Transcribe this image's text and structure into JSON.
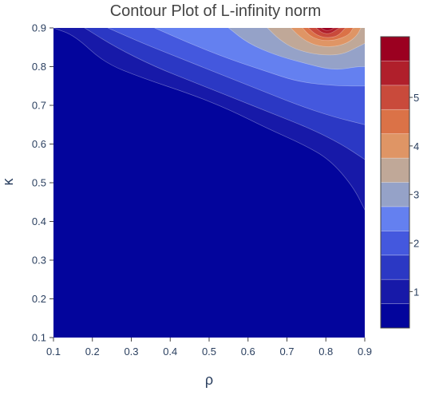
{
  "chart_data": {
    "type": "contour",
    "title": "Contour Plot of L-infinity norm",
    "xlabel": "ρ",
    "ylabel": "κ",
    "xlim": [
      0.1,
      0.9
    ],
    "ylim": [
      0.1,
      0.9
    ],
    "x_ticks": [
      "0.1",
      "0.2",
      "0.3",
      "0.4",
      "0.5",
      "0.6",
      "0.7",
      "0.8",
      "0.9"
    ],
    "y_ticks": [
      "0.1",
      "0.2",
      "0.3",
      "0.4",
      "0.5",
      "0.6",
      "0.7",
      "0.8",
      "0.9"
    ],
    "grid": false,
    "colorbar": {
      "placement": "right",
      "zmin": 0.25,
      "zmax": 5.75,
      "tick_values": [
        1,
        2,
        3,
        4,
        5
      ],
      "tick_labels": [
        "1",
        "2",
        "3",
        "4",
        "5"
      ],
      "levels": [
        {
          "from": 0.25,
          "to": 0.75,
          "color": "#03059c"
        },
        {
          "from": 0.75,
          "to": 1.25,
          "color": "#1719a8"
        },
        {
          "from": 1.25,
          "to": 1.75,
          "color": "#2b38c4"
        },
        {
          "from": 1.75,
          "to": 2.25,
          "color": "#4458de"
        },
        {
          "from": 2.25,
          "to": 2.75,
          "color": "#6480f0"
        },
        {
          "from": 2.75,
          "to": 3.25,
          "color": "#95a2c8"
        },
        {
          "from": 3.25,
          "to": 3.75,
          "color": "#c0a898"
        },
        {
          "from": 3.75,
          "to": 4.25,
          "color": "#df9565"
        },
        {
          "from": 4.25,
          "to": 4.75,
          "color": "#db7247"
        },
        {
          "from": 4.75,
          "to": 5.25,
          "color": "#c94a3b"
        },
        {
          "from": 5.25,
          "to": 5.75,
          "color": "#b01f2b"
        },
        {
          "from": 5.75,
          "to": 6.25,
          "color": "#9b0020"
        }
      ]
    },
    "contour_boundaries": [
      {
        "level": 0.75,
        "points": [
          [
            0.1,
            0.9
          ],
          [
            0.155,
            0.88
          ],
          [
            0.23,
            0.81
          ],
          [
            0.33,
            0.77
          ],
          [
            0.45,
            0.73
          ],
          [
            0.55,
            0.69
          ],
          [
            0.65,
            0.64
          ],
          [
            0.74,
            0.6
          ],
          [
            0.81,
            0.56
          ],
          [
            0.87,
            0.49
          ],
          [
            0.9,
            0.43
          ]
        ]
      },
      {
        "level": 1.25,
        "points": [
          [
            0.18,
            0.9
          ],
          [
            0.26,
            0.85
          ],
          [
            0.36,
            0.8
          ],
          [
            0.46,
            0.76
          ],
          [
            0.56,
            0.72
          ],
          [
            0.66,
            0.68
          ],
          [
            0.76,
            0.64
          ],
          [
            0.84,
            0.6
          ],
          [
            0.9,
            0.56
          ]
        ]
      },
      {
        "level": 1.75,
        "points": [
          [
            0.24,
            0.9
          ],
          [
            0.33,
            0.86
          ],
          [
            0.43,
            0.82
          ],
          [
            0.53,
            0.78
          ],
          [
            0.63,
            0.74
          ],
          [
            0.73,
            0.7
          ],
          [
            0.82,
            0.67
          ],
          [
            0.9,
            0.65
          ]
        ]
      },
      {
        "level": 2.25,
        "points": [
          [
            0.36,
            0.9
          ],
          [
            0.45,
            0.86
          ],
          [
            0.55,
            0.82
          ],
          [
            0.64,
            0.79
          ],
          [
            0.73,
            0.76
          ],
          [
            0.83,
            0.75
          ],
          [
            0.9,
            0.75
          ]
        ]
      },
      {
        "level": 2.75,
        "points": [
          [
            0.55,
            0.9
          ],
          [
            0.6,
            0.86
          ],
          [
            0.67,
            0.83
          ],
          [
            0.74,
            0.81
          ],
          [
            0.82,
            0.79
          ],
          [
            0.88,
            0.8
          ],
          [
            0.9,
            0.8
          ]
        ]
      },
      {
        "level": 3.25,
        "points": [
          [
            0.65,
            0.9
          ],
          [
            0.68,
            0.87
          ],
          [
            0.72,
            0.845
          ],
          [
            0.78,
            0.83
          ],
          [
            0.84,
            0.83
          ],
          [
            0.88,
            0.85
          ],
          [
            0.9,
            0.86
          ]
        ]
      },
      {
        "level": 3.75,
        "points": [
          [
            0.71,
            0.9
          ],
          [
            0.735,
            0.875
          ],
          [
            0.77,
            0.855
          ],
          [
            0.815,
            0.85
          ],
          [
            0.855,
            0.86
          ],
          [
            0.88,
            0.88
          ],
          [
            0.89,
            0.9
          ]
        ]
      },
      {
        "level": 4.25,
        "points": [
          [
            0.74,
            0.9
          ],
          [
            0.76,
            0.878
          ],
          [
            0.79,
            0.867
          ],
          [
            0.825,
            0.868
          ],
          [
            0.86,
            0.882
          ],
          [
            0.87,
            0.9
          ]
        ]
      },
      {
        "level": 4.75,
        "points": [
          [
            0.755,
            0.9
          ],
          [
            0.775,
            0.882
          ],
          [
            0.8,
            0.874
          ],
          [
            0.83,
            0.878
          ],
          [
            0.85,
            0.9
          ]
        ]
      },
      {
        "level": 5.25,
        "points": [
          [
            0.775,
            0.9
          ],
          [
            0.79,
            0.887
          ],
          [
            0.81,
            0.884
          ],
          [
            0.835,
            0.9
          ]
        ]
      },
      {
        "level": 5.75,
        "points": [
          [
            0.788,
            0.9
          ],
          [
            0.798,
            0.893
          ],
          [
            0.812,
            0.894
          ],
          [
            0.82,
            0.9
          ]
        ]
      }
    ]
  }
}
